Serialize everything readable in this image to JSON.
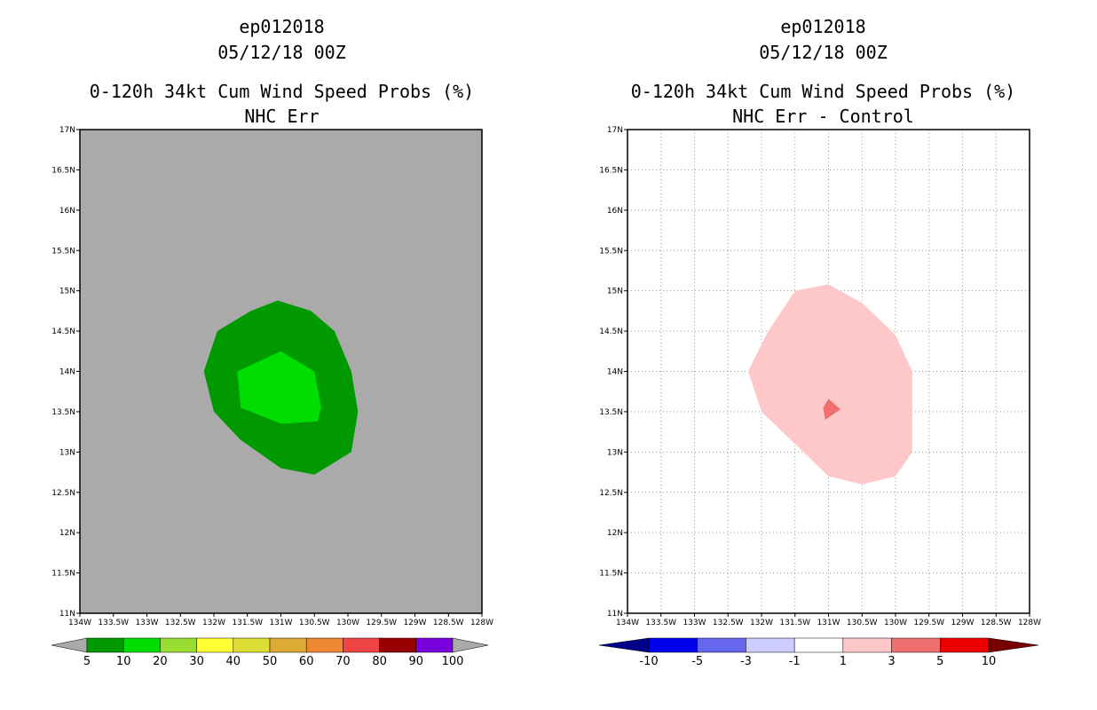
{
  "chart_data": [
    {
      "type": "contour-map",
      "title": "ep012018",
      "date": "05/12/18 00Z",
      "subtitle": "0-120h 34kt Cum Wind Speed Probs (%)",
      "panel_label": "NHC Err",
      "x_ticks": [
        "134W",
        "133.5W",
        "133W",
        "132.5W",
        "132W",
        "131.5W",
        "131W",
        "130.5W",
        "130W",
        "129.5W",
        "129W",
        "128.5W",
        "128W"
      ],
      "y_ticks": [
        "11N",
        "11.5N",
        "12N",
        "12.5N",
        "13N",
        "13.5N",
        "14N",
        "14.5N",
        "15N",
        "15.5N",
        "16N",
        "16.5N",
        "17N"
      ],
      "xlim_lon_west": [
        134,
        128
      ],
      "ylim_lat_north": [
        11,
        17
      ],
      "grid": false,
      "background_color": "#aaaaaa",
      "contours": [
        {
          "level": "5-10",
          "color": "#009900",
          "polygon_lon_lat": [
            [
              -131.45,
              14.75
            ],
            [
              -131.05,
              14.88
            ],
            [
              -130.55,
              14.75
            ],
            [
              -130.2,
              14.5
            ],
            [
              -129.95,
              14.0
            ],
            [
              -129.85,
              13.5
            ],
            [
              -129.95,
              13.0
            ],
            [
              -130.5,
              12.72
            ],
            [
              -131.0,
              12.8
            ],
            [
              -131.6,
              13.15
            ],
            [
              -132.0,
              13.5
            ],
            [
              -132.15,
              14.0
            ],
            [
              -131.95,
              14.5
            ]
          ]
        },
        {
          "level": "10-20",
          "color": "#00dd00",
          "polygon_lon_lat": [
            [
              -131.0,
              14.25
            ],
            [
              -130.5,
              14.0
            ],
            [
              -130.4,
              13.55
            ],
            [
              -130.45,
              13.38
            ],
            [
              -131.0,
              13.35
            ],
            [
              -131.6,
              13.55
            ],
            [
              -131.65,
              14.0
            ]
          ]
        }
      ],
      "colorbar": {
        "labels": [
          "5",
          "10",
          "20",
          "30",
          "40",
          "50",
          "60",
          "70",
          "80",
          "90",
          "100"
        ],
        "colors": [
          "#aaaaaa",
          "#009900",
          "#00dd00",
          "#99dd33",
          "#ffff33",
          "#dddd33",
          "#ddaa33",
          "#ee8833",
          "#ee4444",
          "#990000",
          "#7700dd",
          "#aaaaaa"
        ]
      }
    },
    {
      "type": "contour-map",
      "title": "ep012018",
      "date": "05/12/18 00Z",
      "subtitle": "0-120h 34kt Cum Wind Speed Probs (%)",
      "panel_label": "NHC Err - Control",
      "x_ticks": [
        "134W",
        "133.5W",
        "133W",
        "132.5W",
        "132W",
        "131.5W",
        "131W",
        "130.5W",
        "130W",
        "129.5W",
        "129W",
        "128.5W",
        "128W"
      ],
      "y_ticks": [
        "11N",
        "11.5N",
        "12N",
        "12.5N",
        "13N",
        "13.5N",
        "14N",
        "14.5N",
        "15N",
        "15.5N",
        "16N",
        "16.5N",
        "17N"
      ],
      "xlim_lon_west": [
        134,
        128
      ],
      "ylim_lat_north": [
        11,
        17
      ],
      "grid": true,
      "background_color": "#ffffff",
      "contours": [
        {
          "level": "1-3",
          "color": "#ffc8c8",
          "polygon_lon_lat": [
            [
              -131.5,
              15.0
            ],
            [
              -131.0,
              15.08
            ],
            [
              -130.5,
              14.85
            ],
            [
              -130.0,
              14.45
            ],
            [
              -129.75,
              14.0
            ],
            [
              -129.75,
              13.0
            ],
            [
              -130.0,
              12.7
            ],
            [
              -130.5,
              12.6
            ],
            [
              -131.0,
              12.7
            ],
            [
              -131.5,
              13.1
            ],
            [
              -132.0,
              13.5
            ],
            [
              -132.2,
              14.0
            ],
            [
              -131.9,
              14.5
            ]
          ]
        },
        {
          "level": "3-5",
          "color": "#f07070",
          "polygon_lon_lat": [
            [
              -131.0,
              13.66
            ],
            [
              -130.82,
              13.53
            ],
            [
              -131.05,
              13.4
            ],
            [
              -131.08,
              13.55
            ]
          ]
        }
      ],
      "colorbar": {
        "labels": [
          "-10",
          "-5",
          "-3",
          "-1",
          "1",
          "3",
          "5",
          "10"
        ],
        "colors": [
          "#000088",
          "#0000ee",
          "#6666ee",
          "#ccccff",
          "#ffffff",
          "#ffc8c8",
          "#f07070",
          "#ee0000",
          "#770000"
        ]
      }
    }
  ]
}
